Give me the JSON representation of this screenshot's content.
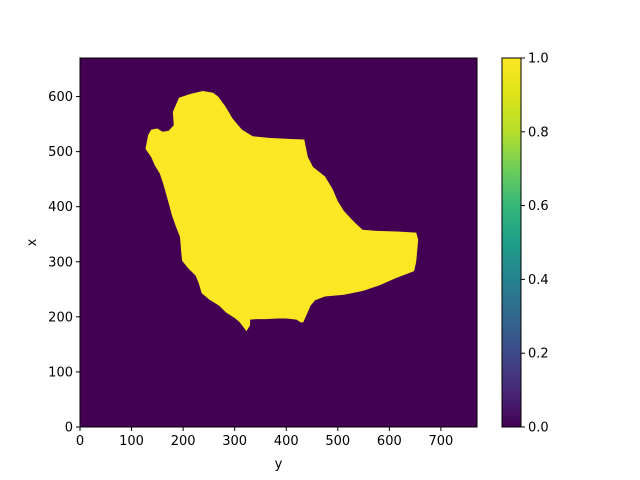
{
  "chart_data": {
    "type": "heatmap",
    "title": "",
    "xlabel": "y",
    "ylabel": "x",
    "xlim": [
      0,
      770
    ],
    "ylim": [
      0,
      670
    ],
    "xticks": [
      0,
      100,
      200,
      300,
      400,
      500,
      600,
      700
    ],
    "yticks": [
      0,
      100,
      200,
      300,
      400,
      500,
      600
    ],
    "colormap": "viridis",
    "background_value": 0.0,
    "background_color": "#440154",
    "mask_value": 1.0,
    "mask_color": "#fde725",
    "region_boundary": [
      [
        127,
        505
      ],
      [
        132,
        530
      ],
      [
        138,
        540
      ],
      [
        150,
        542
      ],
      [
        160,
        536
      ],
      [
        172,
        538
      ],
      [
        182,
        548
      ],
      [
        180,
        572
      ],
      [
        192,
        598
      ],
      [
        212,
        604
      ],
      [
        238,
        610
      ],
      [
        258,
        607
      ],
      [
        268,
        600
      ],
      [
        282,
        582
      ],
      [
        296,
        560
      ],
      [
        314,
        540
      ],
      [
        335,
        528
      ],
      [
        366,
        525
      ],
      [
        408,
        523
      ],
      [
        435,
        522
      ],
      [
        438,
        508
      ],
      [
        442,
        490
      ],
      [
        452,
        472
      ],
      [
        475,
        455
      ],
      [
        490,
        432
      ],
      [
        500,
        410
      ],
      [
        512,
        392
      ],
      [
        532,
        372
      ],
      [
        548,
        358
      ],
      [
        575,
        356
      ],
      [
        615,
        355
      ],
      [
        652,
        353
      ],
      [
        656,
        340
      ],
      [
        652,
        300
      ],
      [
        648,
        283
      ],
      [
        612,
        270
      ],
      [
        580,
        257
      ],
      [
        548,
        247
      ],
      [
        512,
        240
      ],
      [
        475,
        237
      ],
      [
        456,
        230
      ],
      [
        447,
        220
      ],
      [
        440,
        205
      ],
      [
        433,
        190
      ],
      [
        428,
        190
      ],
      [
        420,
        195
      ],
      [
        400,
        197
      ],
      [
        383,
        197
      ],
      [
        360,
        196
      ],
      [
        342,
        196
      ],
      [
        330,
        195
      ],
      [
        330,
        185
      ],
      [
        323,
        174
      ],
      [
        318,
        180
      ],
      [
        310,
        190
      ],
      [
        300,
        198
      ],
      [
        283,
        208
      ],
      [
        270,
        220
      ],
      [
        250,
        232
      ],
      [
        236,
        243
      ],
      [
        230,
        262
      ],
      [
        224,
        275
      ],
      [
        210,
        288
      ],
      [
        198,
        302
      ],
      [
        196,
        320
      ],
      [
        194,
        345
      ],
      [
        186,
        364
      ],
      [
        178,
        385
      ],
      [
        174,
        400
      ],
      [
        168,
        420
      ],
      [
        162,
        440
      ],
      [
        155,
        460
      ],
      [
        145,
        475
      ],
      [
        138,
        490
      ]
    ],
    "colorbar": {
      "min": 0.0,
      "max": 1.0,
      "ticks": [
        "0.0",
        "0.2",
        "0.4",
        "0.6",
        "0.8",
        "1.0"
      ]
    },
    "grid": false,
    "legend": "none"
  }
}
